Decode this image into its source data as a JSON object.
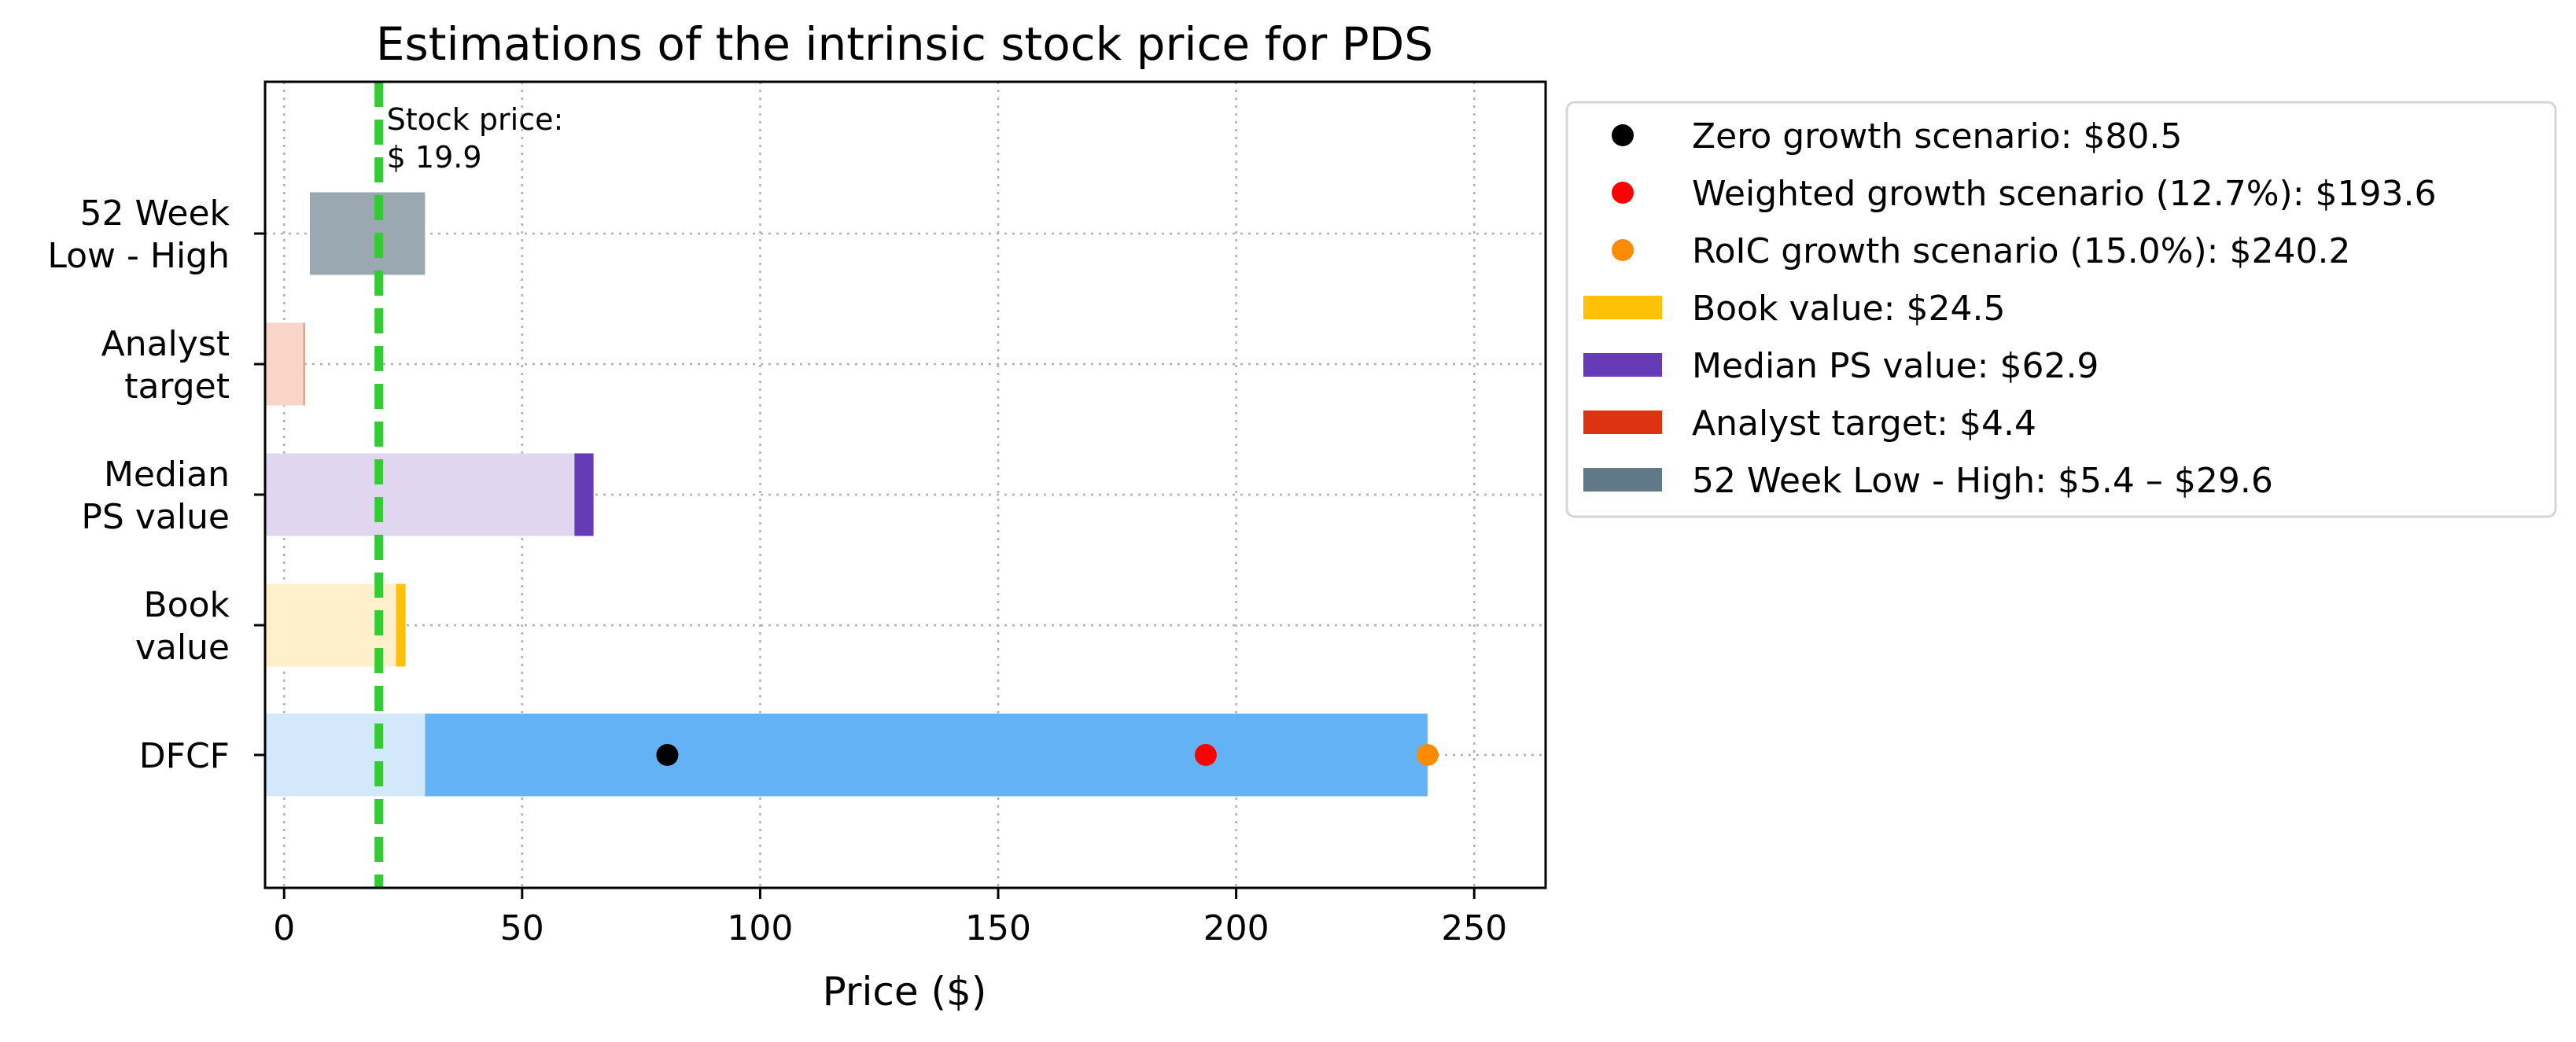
{
  "chart_data": {
    "type": "bar",
    "orientation": "horizontal",
    "title": "Estimations of the intrinsic stock price for PDS",
    "xlabel": "Price ($)",
    "ylabel": "",
    "xlim": [
      -4,
      265
    ],
    "x_ticks": [
      0,
      50,
      100,
      150,
      200,
      250
    ],
    "grid": true,
    "grid_style": "dotted",
    "legend_position": "outside-right",
    "categories": [
      [
        "52 Week",
        "Low - High"
      ],
      [
        "Analyst",
        "target"
      ],
      [
        "Median",
        "PS value"
      ],
      [
        "Book",
        "value"
      ],
      [
        "DFCF"
      ]
    ],
    "stock_price": {
      "value": 19.9,
      "label_lines": [
        "Stock price:",
        "$ 19.9"
      ],
      "color": "#33cc33"
    },
    "bars": [
      {
        "category": "52 Week Low - High",
        "segments": [
          {
            "from": 5.4,
            "to": 29.6,
            "color": "#9aa8b2"
          }
        ]
      },
      {
        "category": "Analyst target",
        "segments": [
          {
            "from": -4,
            "to": 4.4,
            "color": "#f9d5c8"
          },
          {
            "from": 4.0,
            "to": 4.4,
            "color": "#e8a08a"
          }
        ]
      },
      {
        "category": "Median PS value",
        "segments": [
          {
            "from": -4,
            "to": 62.9,
            "color": "#e1d6ef"
          },
          {
            "from": 61.0,
            "to": 65.0,
            "color": "#673ab7"
          }
        ]
      },
      {
        "category": "Book value",
        "segments": [
          {
            "from": -4,
            "to": 24.5,
            "color": "#fff0cb"
          },
          {
            "from": 23.5,
            "to": 25.5,
            "color": "#ffc107"
          }
        ]
      },
      {
        "category": "DFCF",
        "segments": [
          {
            "from": -4,
            "to": 29.6,
            "color": "#d3e8fb"
          },
          {
            "from": 29.6,
            "to": 240.2,
            "color": "#62b2f5"
          }
        ]
      }
    ],
    "points": [
      {
        "category": "DFCF",
        "x": 80.5,
        "color": "#000000"
      },
      {
        "category": "DFCF",
        "x": 193.6,
        "color": "#ff0000"
      },
      {
        "category": "DFCF",
        "x": 240.2,
        "color": "#ff8c00"
      }
    ],
    "legend": [
      {
        "marker": "dot",
        "color": "#000000",
        "label": "Zero growth scenario: $80.5"
      },
      {
        "marker": "dot",
        "color": "#ff0000",
        "label": "Weighted growth scenario (12.7%): $193.6"
      },
      {
        "marker": "dot",
        "color": "#ff8c00",
        "label": "RoIC growth scenario (15.0%): $240.2"
      },
      {
        "marker": "patch",
        "color": "#ffc107",
        "label": "Book value: $24.5"
      },
      {
        "marker": "patch",
        "color": "#673ab7",
        "label": "Median PS value: $62.9"
      },
      {
        "marker": "patch",
        "color": "#dd3311",
        "label": "Analyst target: $4.4"
      },
      {
        "marker": "patch",
        "color": "#607888",
        "label": "52 Week Low - High: $5.4 – $29.6"
      }
    ]
  }
}
